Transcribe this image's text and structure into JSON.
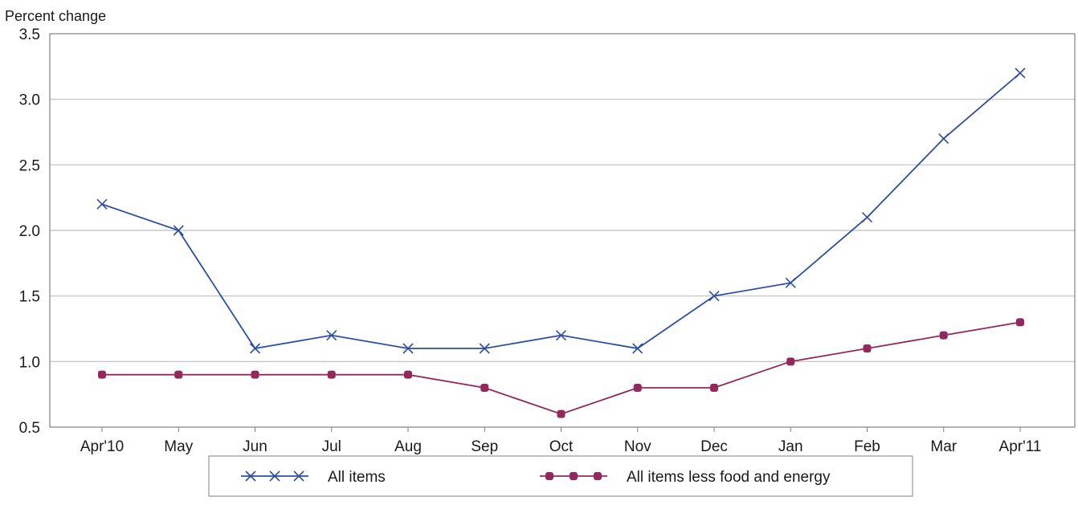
{
  "chart_data": {
    "type": "line",
    "title": "",
    "xlabel": "",
    "ylabel": "Percent change",
    "categories": [
      "Apr'10",
      "May",
      "Jun",
      "Jul",
      "Aug",
      "Sep",
      "Oct",
      "Nov",
      "Dec",
      "Jan",
      "Feb",
      "Mar",
      "Apr'11"
    ],
    "ylim": [
      0.5,
      3.5
    ],
    "yticks": [
      "0.5",
      "1.0",
      "1.5",
      "2.0",
      "2.5",
      "3.0",
      "3.5"
    ],
    "grid": true,
    "legend_position": "bottom",
    "series": [
      {
        "name": "All items",
        "color": "#2d4fa3",
        "marker": "x",
        "values": [
          2.2,
          2.0,
          1.1,
          1.2,
          1.1,
          1.1,
          1.2,
          1.1,
          1.5,
          1.6,
          2.1,
          2.7,
          3.2
        ]
      },
      {
        "name": "All items less food and energy",
        "color": "#93285c",
        "marker": "square",
        "values": [
          0.9,
          0.9,
          0.9,
          0.9,
          0.9,
          0.8,
          0.6,
          0.8,
          0.8,
          1.0,
          1.1,
          1.2,
          1.3
        ]
      }
    ]
  }
}
